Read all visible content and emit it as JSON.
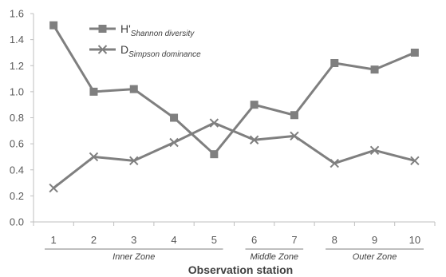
{
  "chart_data": {
    "type": "line",
    "x": [
      "1",
      "2",
      "3",
      "4",
      "5",
      "6",
      "7",
      "8",
      "9",
      "10"
    ],
    "xlabel": "Observation station",
    "ylim": [
      0,
      1.6
    ],
    "yticks": [
      "0.0",
      "0.2",
      "0.4",
      "0.6",
      "0.8",
      "1.0",
      "1.2",
      "1.4",
      "1.6"
    ],
    "grid": false,
    "legend_position": "top-left",
    "series": [
      {
        "name": "H'",
        "name_sub": "Shannon diversity",
        "marker": "square",
        "color": "#7f7f7f",
        "values": [
          1.51,
          1.0,
          1.02,
          0.8,
          0.52,
          0.9,
          0.82,
          1.22,
          1.17,
          1.3
        ]
      },
      {
        "name": "D",
        "name_sub": "Simpson dominance",
        "marker": "x",
        "color": "#7f7f7f",
        "values": [
          0.26,
          0.5,
          0.47,
          0.61,
          0.76,
          0.63,
          0.66,
          0.45,
          0.55,
          0.47
        ]
      }
    ],
    "zones": [
      {
        "label": "Inner Zone",
        "stations": [
          "1",
          "5"
        ]
      },
      {
        "label": "Middle Zone",
        "stations": [
          "6",
          "7"
        ]
      },
      {
        "label": "Outer Zone",
        "stations": [
          "8",
          "10"
        ]
      }
    ]
  }
}
